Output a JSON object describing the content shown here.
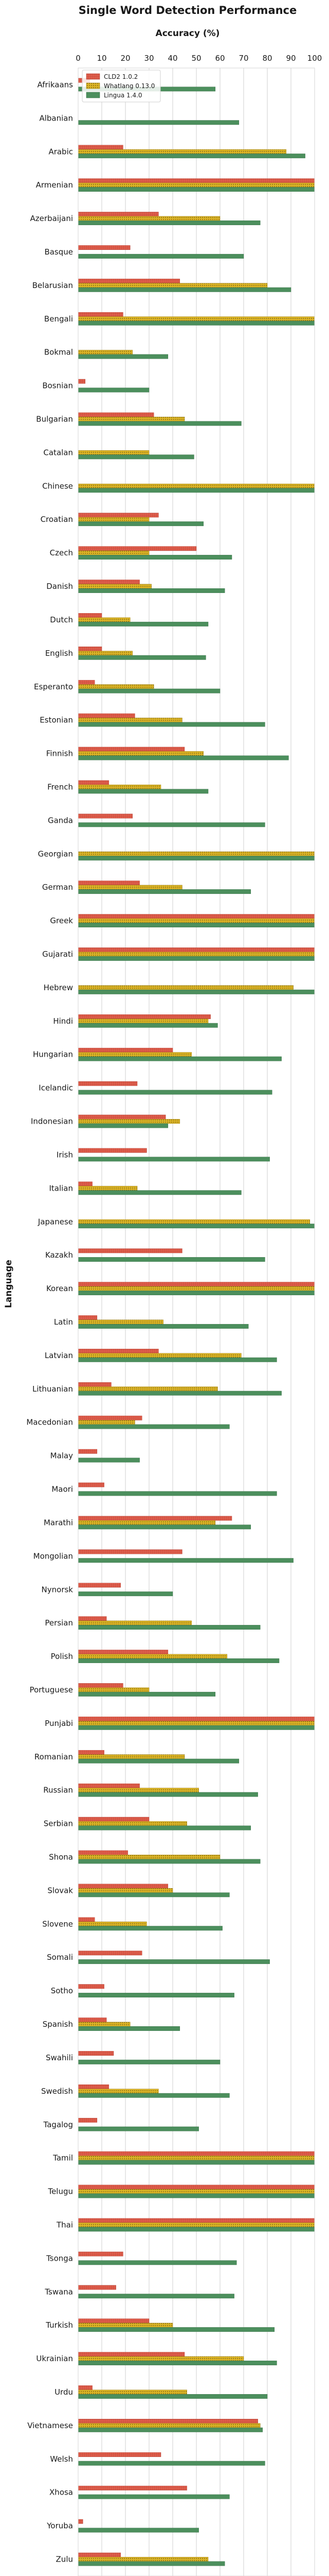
{
  "chart_data": {
    "type": "bar",
    "orientation": "horizontal",
    "title": "Single Word Detection Performance",
    "xlabel": "Accuracy (%)",
    "ylabel": "Language",
    "xlim": [
      0,
      100
    ],
    "xticks": [
      0,
      10,
      20,
      30,
      40,
      50,
      60,
      70,
      80,
      90,
      100
    ],
    "grid": "vertical",
    "legend_position": "top-left",
    "categories": [
      "Afrikaans",
      "Albanian",
      "Arabic",
      "Armenian",
      "Azerbaijani",
      "Basque",
      "Belarusian",
      "Bengali",
      "Bokmal",
      "Bosnian",
      "Bulgarian",
      "Catalan",
      "Chinese",
      "Croatian",
      "Czech",
      "Danish",
      "Dutch",
      "English",
      "Esperanto",
      "Estonian",
      "Finnish",
      "French",
      "Ganda",
      "Georgian",
      "German",
      "Greek",
      "Gujarati",
      "Hebrew",
      "Hindi",
      "Hungarian",
      "Icelandic",
      "Indonesian",
      "Irish",
      "Italian",
      "Japanese",
      "Kazakh",
      "Korean",
      "Latin",
      "Latvian",
      "Lithuanian",
      "Macedonian",
      "Malay",
      "Maori",
      "Marathi",
      "Mongolian",
      "Nynorsk",
      "Persian",
      "Polish",
      "Portuguese",
      "Punjabi",
      "Romanian",
      "Russian",
      "Serbian",
      "Shona",
      "Slovak",
      "Slovene",
      "Somali",
      "Sotho",
      "Spanish",
      "Swahili",
      "Swedish",
      "Tagalog",
      "Tamil",
      "Telugu",
      "Thai",
      "Tsonga",
      "Tswana",
      "Turkish",
      "Ukrainian",
      "Urdu",
      "Vietnamese",
      "Welsh",
      "Xhosa",
      "Yoruba",
      "Zulu"
    ],
    "series": [
      {
        "name": "CLD2 1.0.2",
        "color": "#e05d4b",
        "pattern": "grid",
        "values": [
          5,
          0,
          19,
          100,
          34,
          22,
          43,
          19,
          0,
          3,
          32,
          0,
          0,
          34,
          50,
          26,
          10,
          10,
          7,
          24,
          45,
          13,
          23,
          0,
          26,
          100,
          100,
          0,
          56,
          40,
          25,
          37,
          29,
          6,
          0,
          44,
          100,
          8,
          34,
          14,
          27,
          8,
          11,
          65,
          44,
          18,
          12,
          38,
          19,
          100,
          11,
          26,
          30,
          21,
          38,
          7,
          27,
          11,
          12,
          15,
          13,
          8,
          100,
          100,
          100,
          19,
          16,
          30,
          45,
          6,
          76,
          35,
          46,
          2,
          18
        ]
      },
      {
        "name": "Whatlang 0.13.0",
        "color": "#ddb526",
        "pattern": "dots",
        "values": [
          0,
          0,
          88,
          100,
          60,
          0,
          80,
          100,
          23,
          0,
          45,
          30,
          100,
          30,
          30,
          31,
          22,
          23,
          32,
          44,
          53,
          35,
          0,
          100,
          44,
          100,
          100,
          91,
          55,
          48,
          0,
          43,
          0,
          25,
          98,
          0,
          100,
          36,
          69,
          59,
          24,
          0,
          0,
          58,
          0,
          0,
          48,
          63,
          30,
          100,
          45,
          51,
          46,
          60,
          40,
          29,
          0,
          0,
          22,
          0,
          34,
          0,
          100,
          100,
          100,
          0,
          0,
          40,
          70,
          46,
          77,
          0,
          0,
          0,
          55
        ]
      },
      {
        "name": "Lingua 1.4.0",
        "color": "#4c8f5d",
        "pattern": "solid",
        "values": [
          58,
          68,
          96,
          100,
          77,
          70,
          90,
          100,
          38,
          30,
          69,
          49,
          100,
          53,
          65,
          62,
          55,
          54,
          60,
          79,
          89,
          55,
          79,
          100,
          73,
          100,
          100,
          100,
          59,
          86,
          82,
          38,
          81,
          69,
          100,
          79,
          100,
          72,
          84,
          86,
          64,
          26,
          84,
          73,
          91,
          40,
          77,
          85,
          58,
          100,
          68,
          76,
          73,
          77,
          64,
          61,
          81,
          66,
          43,
          60,
          64,
          51,
          100,
          100,
          100,
          67,
          66,
          83,
          84,
          80,
          78,
          79,
          64,
          51,
          62
        ]
      }
    ]
  }
}
